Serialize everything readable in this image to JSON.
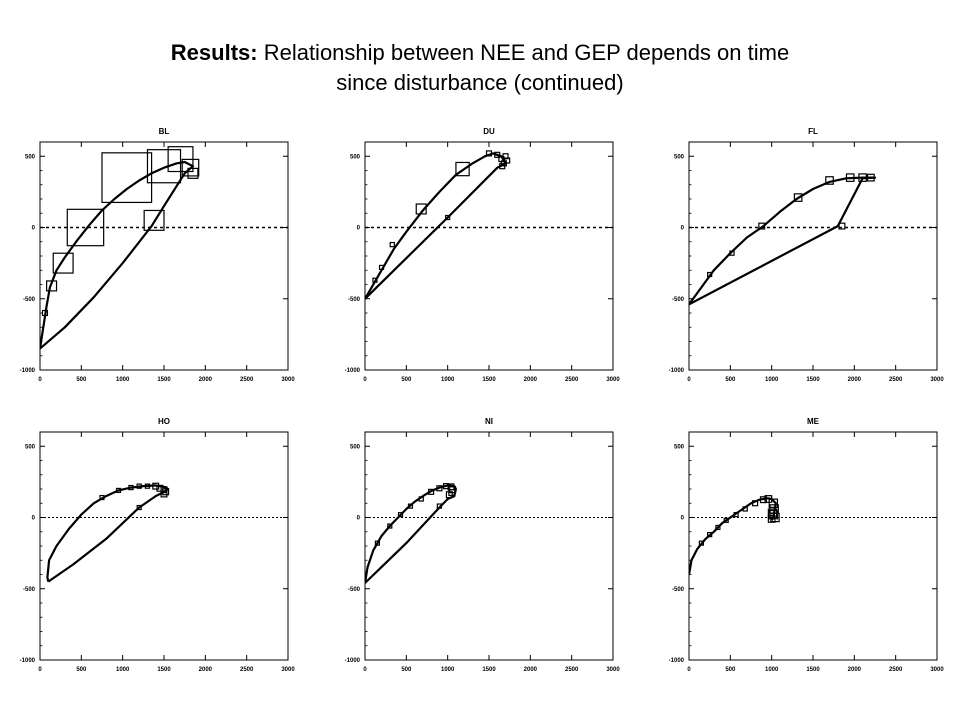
{
  "slide": {
    "title_bold": "Results:",
    "title_rest": " Relationship between NEE and GEP depends on time since disturbance (continued)",
    "title_line1_rest": "Relationship between NEE and GEP depends on time",
    "title_line2": "since disturbance (continued)"
  },
  "chart_data": [
    {
      "type": "line",
      "title": "BL",
      "xlim": [
        0,
        3000
      ],
      "ylim": [
        -1000,
        600
      ],
      "xticks": [
        0,
        500,
        1000,
        1500,
        2000,
        2500,
        3000
      ],
      "yticks": [
        -1000,
        -500,
        0,
        500
      ],
      "zero_line": "dashed",
      "series": [
        {
          "values": [
            [
              0,
              -850
            ],
            [
              40,
              -700
            ],
            [
              80,
              -550
            ],
            [
              120,
              -420
            ],
            [
              200,
              -300
            ],
            [
              300,
              -210
            ],
            [
              450,
              -90
            ],
            [
              600,
              20
            ],
            [
              750,
              120
            ],
            [
              900,
              200
            ],
            [
              1050,
              270
            ],
            [
              1200,
              330
            ],
            [
              1350,
              380
            ],
            [
              1500,
              420
            ],
            [
              1650,
              450
            ],
            [
              1750,
              460
            ],
            [
              1850,
              430
            ],
            [
              1750,
              380
            ],
            [
              1500,
              150
            ],
            [
              1350,
              10
            ],
            [
              1000,
              -250
            ],
            [
              650,
              -490
            ],
            [
              300,
              -700
            ],
            [
              0,
              -850
            ]
          ]
        }
      ],
      "markers": [
        {
          "x": 60,
          "y": -600,
          "s": 30
        },
        {
          "x": 140,
          "y": -410,
          "s": 60
        },
        {
          "x": 280,
          "y": -250,
          "s": 120
        },
        {
          "x": 550,
          "y": 0,
          "s": 220
        },
        {
          "x": 1050,
          "y": 350,
          "s": 300
        },
        {
          "x": 1500,
          "y": 430,
          "s": 200
        },
        {
          "x": 1700,
          "y": 480,
          "s": 150
        },
        {
          "x": 1820,
          "y": 420,
          "s": 100
        },
        {
          "x": 1380,
          "y": 50,
          "s": 120
        },
        {
          "x": 1850,
          "y": 380,
          "s": 60
        }
      ]
    },
    {
      "type": "line",
      "title": "DU",
      "xlim": [
        0,
        3000
      ],
      "ylim": [
        -1000,
        600
      ],
      "xticks": [
        0,
        500,
        1000,
        1500,
        2000,
        2500,
        3000
      ],
      "yticks": [
        -1000,
        -500,
        0,
        500
      ],
      "zero_line": "dashed",
      "series": [
        {
          "values": [
            [
              0,
              -500
            ],
            [
              100,
              -400
            ],
            [
              200,
              -300
            ],
            [
              350,
              -150
            ],
            [
              500,
              -30
            ],
            [
              700,
              120
            ],
            [
              900,
              250
            ],
            [
              1100,
              370
            ],
            [
              1300,
              450
            ],
            [
              1450,
              500
            ],
            [
              1550,
              520
            ],
            [
              1650,
              500
            ],
            [
              1700,
              450
            ],
            [
              1600,
              420
            ],
            [
              1000,
              70
            ],
            [
              0,
              -500
            ]
          ]
        }
      ],
      "markers": [
        {
          "x": 120,
          "y": -370,
          "s": 10
        },
        {
          "x": 200,
          "y": -280,
          "s": 15
        },
        {
          "x": 330,
          "y": -120,
          "s": 25
        },
        {
          "x": 680,
          "y": 130,
          "s": 60
        },
        {
          "x": 1180,
          "y": 410,
          "s": 80
        },
        {
          "x": 1500,
          "y": 520,
          "s": 30
        },
        {
          "x": 1600,
          "y": 510,
          "s": 30
        },
        {
          "x": 1650,
          "y": 480,
          "s": 30
        },
        {
          "x": 1680,
          "y": 450,
          "s": 30
        },
        {
          "x": 1700,
          "y": 500,
          "s": 30
        },
        {
          "x": 1720,
          "y": 470,
          "s": 30
        },
        {
          "x": 1660,
          "y": 430,
          "s": 30
        },
        {
          "x": 1000,
          "y": 70,
          "s": 15
        }
      ]
    },
    {
      "type": "line",
      "title": "FL",
      "xlim": [
        0,
        3000
      ],
      "ylim": [
        -1000,
        600
      ],
      "xticks": [
        0,
        500,
        1000,
        1500,
        2000,
        2500,
        3000
      ],
      "yticks": [
        -1000,
        -500,
        0,
        500
      ],
      "zero_line": "dashed",
      "series": [
        {
          "values": [
            [
              0,
              -540
            ],
            [
              150,
              -420
            ],
            [
              300,
              -300
            ],
            [
              500,
              -180
            ],
            [
              700,
              -70
            ],
            [
              900,
              10
            ],
            [
              1100,
              110
            ],
            [
              1300,
              200
            ],
            [
              1500,
              270
            ],
            [
              1700,
              320
            ],
            [
              1900,
              345
            ],
            [
              2100,
              350
            ],
            [
              2250,
              350
            ],
            [
              2100,
              345
            ],
            [
              1800,
              10
            ],
            [
              0,
              -540
            ]
          ]
        }
      ],
      "markers": [
        {
          "x": 250,
          "y": -330,
          "s": 15
        },
        {
          "x": 520,
          "y": -180,
          "s": 25
        },
        {
          "x": 880,
          "y": 10,
          "s": 35
        },
        {
          "x": 1320,
          "y": 210,
          "s": 45
        },
        {
          "x": 1700,
          "y": 330,
          "s": 45
        },
        {
          "x": 1950,
          "y": 350,
          "s": 45
        },
        {
          "x": 2100,
          "y": 350,
          "s": 45
        },
        {
          "x": 2200,
          "y": 350,
          "s": 40
        },
        {
          "x": 1850,
          "y": 10,
          "s": 35
        }
      ]
    },
    {
      "type": "line",
      "title": "HO",
      "xlim": [
        0,
        3000
      ],
      "ylim": [
        -1000,
        600
      ],
      "xticks": [
        0,
        500,
        1000,
        1500,
        2000,
        2500,
        3000
      ],
      "yticks": [
        -1000,
        -500,
        0,
        500
      ],
      "zero_line": "dashed",
      "series": [
        {
          "values": [
            [
              100,
              -450
            ],
            [
              90,
              -420
            ],
            [
              110,
              -300
            ],
            [
              200,
              -200
            ],
            [
              350,
              -80
            ],
            [
              500,
              20
            ],
            [
              650,
              100
            ],
            [
              800,
              150
            ],
            [
              950,
              190
            ],
            [
              1100,
              210
            ],
            [
              1250,
              220
            ],
            [
              1400,
              225
            ],
            [
              1500,
              215
            ],
            [
              1550,
              200
            ],
            [
              1500,
              180
            ],
            [
              1400,
              150
            ],
            [
              1200,
              70
            ],
            [
              800,
              -150
            ],
            [
              400,
              -330
            ],
            [
              100,
              -450
            ]
          ]
        }
      ],
      "markers": [
        {
          "x": 750,
          "y": 140,
          "s": 20
        },
        {
          "x": 950,
          "y": 190,
          "s": 20
        },
        {
          "x": 1100,
          "y": 210,
          "s": 25
        },
        {
          "x": 1200,
          "y": 220,
          "s": 25
        },
        {
          "x": 1300,
          "y": 220,
          "s": 25
        },
        {
          "x": 1400,
          "y": 220,
          "s": 35
        },
        {
          "x": 1450,
          "y": 205,
          "s": 35
        },
        {
          "x": 1500,
          "y": 195,
          "s": 35
        },
        {
          "x": 1520,
          "y": 180,
          "s": 35
        },
        {
          "x": 1500,
          "y": 165,
          "s": 35
        },
        {
          "x": 1200,
          "y": 70,
          "s": 20
        }
      ]
    },
    {
      "type": "line",
      "title": "NI",
      "xlim": [
        0,
        3000
      ],
      "ylim": [
        -1000,
        600
      ],
      "xticks": [
        0,
        500,
        1000,
        1500,
        2000,
        2500,
        3000
      ],
      "yticks": [
        -1000,
        -500,
        0,
        500
      ],
      "zero_line": "dashed",
      "series": [
        {
          "values": [
            [
              0,
              -460
            ],
            [
              30,
              -350
            ],
            [
              100,
              -230
            ],
            [
              200,
              -130
            ],
            [
              300,
              -60
            ],
            [
              400,
              0
            ],
            [
              500,
              60
            ],
            [
              600,
              110
            ],
            [
              700,
              150
            ],
            [
              800,
              185
            ],
            [
              900,
              210
            ],
            [
              1000,
              225
            ],
            [
              1080,
              220
            ],
            [
              1100,
              200
            ],
            [
              1080,
              150
            ],
            [
              1000,
              130
            ],
            [
              900,
              70
            ],
            [
              500,
              -180
            ],
            [
              0,
              -460
            ]
          ]
        }
      ],
      "markers": [
        {
          "x": 150,
          "y": -180,
          "s": 15
        },
        {
          "x": 300,
          "y": -60,
          "s": 20
        },
        {
          "x": 430,
          "y": 20,
          "s": 20
        },
        {
          "x": 550,
          "y": 80,
          "s": 22
        },
        {
          "x": 680,
          "y": 130,
          "s": 25
        },
        {
          "x": 800,
          "y": 180,
          "s": 30
        },
        {
          "x": 900,
          "y": 205,
          "s": 30
        },
        {
          "x": 980,
          "y": 220,
          "s": 30
        },
        {
          "x": 1040,
          "y": 215,
          "s": 35
        },
        {
          "x": 1060,
          "y": 195,
          "s": 35
        },
        {
          "x": 1050,
          "y": 175,
          "s": 35
        },
        {
          "x": 1020,
          "y": 160,
          "s": 35
        },
        {
          "x": 900,
          "y": 80,
          "s": 25
        }
      ]
    },
    {
      "type": "line",
      "title": "ME",
      "xlim": [
        0,
        3000
      ],
      "ylim": [
        -1000,
        600
      ],
      "xticks": [
        0,
        500,
        1000,
        1500,
        2000,
        2500,
        3000
      ],
      "yticks": [
        -1000,
        -500,
        0,
        500
      ],
      "zero_line": "dashed",
      "series": [
        {
          "values": [
            [
              0,
              -400
            ],
            [
              30,
              -300
            ],
            [
              100,
              -220
            ],
            [
              200,
              -150
            ],
            [
              300,
              -100
            ],
            [
              400,
              -40
            ],
            [
              550,
              20
            ],
            [
              650,
              60
            ],
            [
              750,
              100
            ],
            [
              850,
              125
            ],
            [
              950,
              135
            ],
            [
              1000,
              130
            ],
            [
              1050,
              100
            ],
            [
              1020,
              0
            ],
            [
              1000,
              -20
            ]
          ]
        }
      ],
      "markers": [
        {
          "x": 150,
          "y": -180,
          "s": 15
        },
        {
          "x": 250,
          "y": -120,
          "s": 15
        },
        {
          "x": 350,
          "y": -70,
          "s": 15
        },
        {
          "x": 450,
          "y": -20,
          "s": 20
        },
        {
          "x": 570,
          "y": 20,
          "s": 20
        },
        {
          "x": 680,
          "y": 60,
          "s": 25
        },
        {
          "x": 800,
          "y": 100,
          "s": 30
        },
        {
          "x": 900,
          "y": 125,
          "s": 35
        },
        {
          "x": 960,
          "y": 130,
          "s": 40
        },
        {
          "x": 1020,
          "y": 100,
          "s": 50
        },
        {
          "x": 1030,
          "y": 60,
          "s": 50
        },
        {
          "x": 1020,
          "y": 20,
          "s": 50
        },
        {
          "x": 1040,
          "y": 0,
          "s": 50
        },
        {
          "x": 1000,
          "y": -10,
          "s": 40
        },
        {
          "x": 1010,
          "y": 30,
          "s": 50
        }
      ]
    }
  ]
}
